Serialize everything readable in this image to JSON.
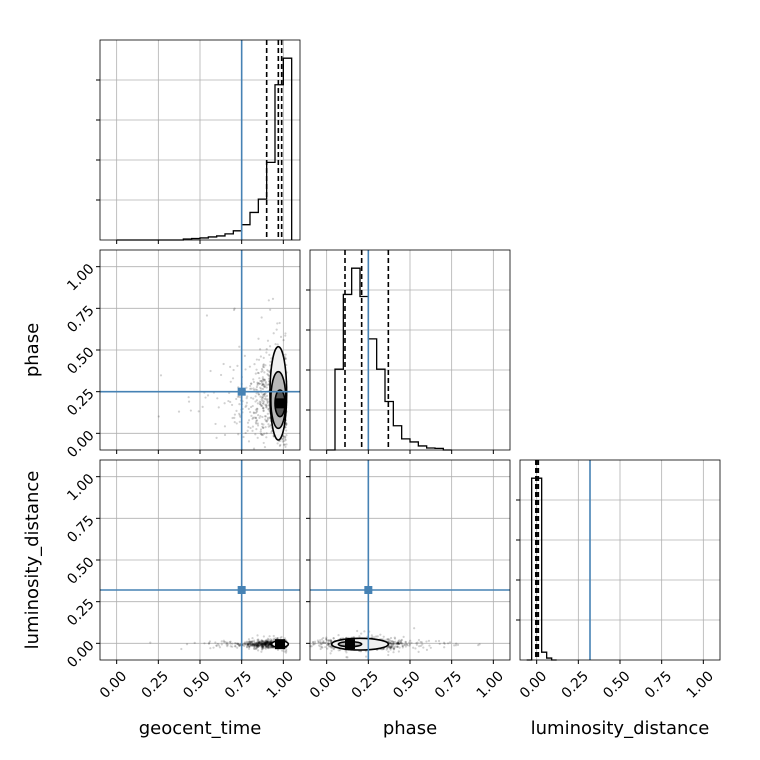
{
  "chart_data": {
    "type": "corner",
    "parameters": [
      "geocent_time",
      "phase",
      "luminosity_distance"
    ],
    "axis_labels": {
      "geocent_time": "geocent_time",
      "phase": "phase",
      "luminosity_distance": "luminosity_distance"
    },
    "tick_values": [
      0.0,
      0.25,
      0.5,
      0.75,
      1.0
    ],
    "tick_labels": [
      "0.00",
      "0.25",
      "0.50",
      "0.75",
      "1.00"
    ],
    "xlim": {
      "geocent_time": [
        -0.1,
        1.1
      ],
      "phase": [
        -0.1,
        1.1
      ],
      "luminosity_distance": [
        -0.1,
        1.1
      ]
    },
    "truths": {
      "geocent_time": 0.75,
      "phase": 0.25,
      "luminosity_distance": 0.32
    },
    "truth_color": "#4682b4",
    "grid": true,
    "histograms": {
      "geocent_time": {
        "bins": [
          0.0,
          0.05,
          0.1,
          0.15,
          0.2,
          0.25,
          0.3,
          0.35,
          0.4,
          0.45,
          0.5,
          0.55,
          0.6,
          0.65,
          0.7,
          0.75,
          0.8,
          0.85,
          0.9,
          0.95,
          1.0,
          1.05
        ],
        "counts": [
          0,
          0,
          0,
          0,
          0,
          0,
          0,
          0,
          0.005,
          0.007,
          0.01,
          0.015,
          0.02,
          0.03,
          0.045,
          0.075,
          0.135,
          0.2,
          0.38,
          0.76,
          0.89
        ],
        "quantiles": [
          0.9,
          0.97,
          0.99
        ]
      },
      "phase": {
        "bins": [
          0.0,
          0.05,
          0.1,
          0.15,
          0.2,
          0.25,
          0.3,
          0.35,
          0.4,
          0.45,
          0.5,
          0.55,
          0.6,
          0.65,
          0.7,
          0.75
        ],
        "counts": [
          0,
          0.4,
          0.77,
          0.9,
          0.76,
          0.55,
          0.4,
          0.24,
          0.12,
          0.055,
          0.04,
          0.02,
          0.01,
          0.008,
          0
        ],
        "quantiles": [
          0.11,
          0.21,
          0.37
        ]
      },
      "luminosity_distance": {
        "bins": [
          -0.06,
          -0.03,
          0.0,
          0.03,
          0.06,
          0.09,
          0.12
        ],
        "counts": [
          0,
          0.93,
          0.93,
          0.04,
          0.01,
          0
        ],
        "quantiles": [
          -0.005,
          0.0,
          0.01
        ]
      }
    },
    "pairs": [
      {
        "x": "geocent_time",
        "y": "phase",
        "center": [
          0.96,
          0.2
        ],
        "spread": [
          0.1,
          0.12
        ],
        "contour_levels": [
          {
            "cx": 0.97,
            "cy": 0.24,
            "rx": 0.05,
            "ry": 0.28
          },
          {
            "cx": 0.97,
            "cy": 0.2,
            "rx": 0.045,
            "ry": 0.17
          },
          {
            "cx": 0.98,
            "cy": 0.18,
            "rx": 0.03,
            "ry": 0.08
          }
        ]
      },
      {
        "x": "geocent_time",
        "y": "luminosity_distance",
        "center": [
          0.95,
          -0.005
        ],
        "spread": [
          0.09,
          0.01
        ],
        "contour_levels": [
          {
            "cx": 0.98,
            "cy": -0.005,
            "rx": 0.05,
            "ry": 0.02
          }
        ]
      },
      {
        "x": "phase",
        "y": "luminosity_distance",
        "center": [
          0.22,
          -0.005
        ],
        "spread": [
          0.12,
          0.015
        ],
        "contour_levels": [
          {
            "cx": 0.2,
            "cy": -0.005,
            "rx": 0.17,
            "ry": 0.035
          },
          {
            "cx": 0.14,
            "cy": -0.005,
            "rx": 0.07,
            "ry": 0.015
          }
        ]
      }
    ]
  }
}
